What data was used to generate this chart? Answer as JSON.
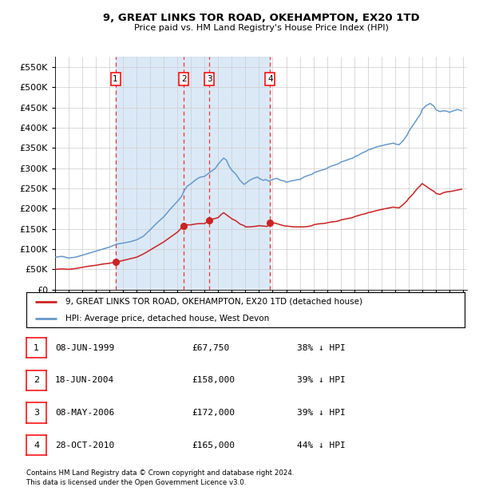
{
  "title": "9, GREAT LINKS TOR ROAD, OKEHAMPTON, EX20 1TD",
  "subtitle": "Price paid vs. HM Land Registry's House Price Index (HPI)",
  "bg_color": "#ddeeff",
  "plot_bg": "#ffffff",
  "legend1": "9, GREAT LINKS TOR ROAD, OKEHAMPTON, EX20 1TD (detached house)",
  "legend2": "HPI: Average price, detached house, West Devon",
  "footer1": "Contains HM Land Registry data © Crown copyright and database right 2024.",
  "footer2": "This data is licensed under the Open Government Licence v3.0.",
  "transactions": [
    {
      "num": 1,
      "date": "08-JUN-1999",
      "price": 67750,
      "pct": "38%",
      "x_year": 1999.44
    },
    {
      "num": 2,
      "date": "18-JUN-2004",
      "price": 158000,
      "pct": "39%",
      "x_year": 2004.46
    },
    {
      "num": 3,
      "date": "08-MAY-2006",
      "price": 172000,
      "pct": "39%",
      "x_year": 2006.35
    },
    {
      "num": 4,
      "date": "28-OCT-2010",
      "price": 165000,
      "pct": "44%",
      "x_year": 2010.82
    }
  ],
  "hpi_line_color": "#6699cc",
  "price_line_color": "#cc2222",
  "dot_color": "#cc2222",
  "vline_color": "#ee3333",
  "ylim": [
    0,
    575000
  ],
  "yticks": [
    0,
    50000,
    100000,
    150000,
    200000,
    250000,
    300000,
    350000,
    400000,
    450000,
    500000,
    550000
  ],
  "xlim": [
    1995.0,
    2025.3
  ],
  "hpi_data": [
    [
      1995.0,
      80000
    ],
    [
      1995.5,
      82000
    ],
    [
      1996.0,
      78000
    ],
    [
      1996.5,
      80000
    ],
    [
      1997.0,
      85000
    ],
    [
      1997.5,
      90000
    ],
    [
      1998.0,
      95000
    ],
    [
      1998.5,
      100000
    ],
    [
      1999.0,
      105000
    ],
    [
      1999.5,
      112000
    ],
    [
      2000.0,
      115000
    ],
    [
      2000.5,
      118000
    ],
    [
      2001.0,
      123000
    ],
    [
      2001.5,
      132000
    ],
    [
      2002.0,
      148000
    ],
    [
      2002.5,
      165000
    ],
    [
      2003.0,
      180000
    ],
    [
      2003.5,
      200000
    ],
    [
      2004.0,
      218000
    ],
    [
      2004.3,
      230000
    ],
    [
      2004.5,
      245000
    ],
    [
      2004.7,
      255000
    ],
    [
      2005.0,
      262000
    ],
    [
      2005.3,
      270000
    ],
    [
      2005.5,
      275000
    ],
    [
      2005.7,
      278000
    ],
    [
      2006.0,
      280000
    ],
    [
      2006.2,
      285000
    ],
    [
      2006.4,
      290000
    ],
    [
      2006.6,
      295000
    ],
    [
      2006.8,
      300000
    ],
    [
      2007.0,
      310000
    ],
    [
      2007.2,
      318000
    ],
    [
      2007.4,
      325000
    ],
    [
      2007.6,
      320000
    ],
    [
      2007.8,
      305000
    ],
    [
      2008.0,
      295000
    ],
    [
      2008.3,
      285000
    ],
    [
      2008.6,
      270000
    ],
    [
      2008.9,
      260000
    ],
    [
      2009.0,
      262000
    ],
    [
      2009.3,
      270000
    ],
    [
      2009.6,
      275000
    ],
    [
      2009.9,
      278000
    ],
    [
      2010.0,
      275000
    ],
    [
      2010.3,
      270000
    ],
    [
      2010.5,
      272000
    ],
    [
      2010.7,
      268000
    ],
    [
      2011.0,
      272000
    ],
    [
      2011.3,
      275000
    ],
    [
      2011.6,
      270000
    ],
    [
      2011.9,
      268000
    ],
    [
      2012.0,
      265000
    ],
    [
      2012.3,
      268000
    ],
    [
      2012.6,
      270000
    ],
    [
      2012.9,
      272000
    ],
    [
      2013.0,
      272000
    ],
    [
      2013.3,
      278000
    ],
    [
      2013.6,
      282000
    ],
    [
      2013.9,
      285000
    ],
    [
      2014.0,
      288000
    ],
    [
      2014.3,
      292000
    ],
    [
      2014.6,
      295000
    ],
    [
      2014.9,
      298000
    ],
    [
      2015.0,
      300000
    ],
    [
      2015.3,
      305000
    ],
    [
      2015.6,
      308000
    ],
    [
      2015.9,
      312000
    ],
    [
      2016.0,
      315000
    ],
    [
      2016.3,
      318000
    ],
    [
      2016.6,
      322000
    ],
    [
      2016.9,
      325000
    ],
    [
      2017.0,
      328000
    ],
    [
      2017.3,
      332000
    ],
    [
      2017.6,
      338000
    ],
    [
      2017.9,
      342000
    ],
    [
      2018.0,
      345000
    ],
    [
      2018.3,
      348000
    ],
    [
      2018.6,
      352000
    ],
    [
      2018.9,
      355000
    ],
    [
      2019.0,
      355000
    ],
    [
      2019.3,
      358000
    ],
    [
      2019.6,
      360000
    ],
    [
      2019.9,
      362000
    ],
    [
      2020.0,
      360000
    ],
    [
      2020.3,
      358000
    ],
    [
      2020.6,
      368000
    ],
    [
      2020.9,
      382000
    ],
    [
      2021.0,
      390000
    ],
    [
      2021.3,
      405000
    ],
    [
      2021.6,
      420000
    ],
    [
      2021.9,
      435000
    ],
    [
      2022.0,
      445000
    ],
    [
      2022.3,
      455000
    ],
    [
      2022.6,
      460000
    ],
    [
      2022.9,
      452000
    ],
    [
      2023.0,
      445000
    ],
    [
      2023.3,
      440000
    ],
    [
      2023.6,
      442000
    ],
    [
      2023.9,
      440000
    ],
    [
      2024.0,
      438000
    ],
    [
      2024.3,
      442000
    ],
    [
      2024.6,
      445000
    ],
    [
      2024.9,
      442000
    ]
  ],
  "price_data": [
    [
      1995.0,
      50000
    ],
    [
      1995.5,
      51000
    ],
    [
      1996.0,
      50000
    ],
    [
      1996.5,
      52000
    ],
    [
      1997.0,
      55000
    ],
    [
      1997.5,
      58000
    ],
    [
      1998.0,
      60000
    ],
    [
      1998.5,
      63000
    ],
    [
      1999.0,
      65000
    ],
    [
      1999.44,
      67750
    ],
    [
      1999.5,
      68000
    ],
    [
      2000.0,
      72000
    ],
    [
      2000.5,
      76000
    ],
    [
      2001.0,
      80000
    ],
    [
      2001.5,
      88000
    ],
    [
      2002.0,
      98000
    ],
    [
      2002.5,
      108000
    ],
    [
      2003.0,
      118000
    ],
    [
      2003.5,
      130000
    ],
    [
      2004.0,
      142000
    ],
    [
      2004.46,
      158000
    ],
    [
      2004.5,
      158000
    ],
    [
      2004.7,
      160000
    ],
    [
      2005.0,
      160000
    ],
    [
      2005.3,
      162000
    ],
    [
      2005.6,
      163000
    ],
    [
      2005.9,
      163000
    ],
    [
      2006.0,
      163000
    ],
    [
      2006.35,
      172000
    ],
    [
      2006.5,
      173000
    ],
    [
      2006.7,
      175000
    ],
    [
      2007.0,
      178000
    ],
    [
      2007.2,
      185000
    ],
    [
      2007.4,
      190000
    ],
    [
      2007.6,
      185000
    ],
    [
      2007.8,
      180000
    ],
    [
      2008.0,
      175000
    ],
    [
      2008.3,
      170000
    ],
    [
      2008.6,
      162000
    ],
    [
      2008.9,
      158000
    ],
    [
      2009.0,
      155000
    ],
    [
      2009.3,
      155000
    ],
    [
      2009.6,
      156000
    ],
    [
      2009.9,
      157000
    ],
    [
      2010.0,
      158000
    ],
    [
      2010.3,
      157000
    ],
    [
      2010.6,
      156000
    ],
    [
      2010.82,
      165000
    ],
    [
      2011.0,
      165000
    ],
    [
      2011.2,
      164000
    ],
    [
      2011.4,
      162000
    ],
    [
      2011.6,
      160000
    ],
    [
      2011.8,
      158000
    ],
    [
      2012.0,
      157000
    ],
    [
      2012.3,
      156000
    ],
    [
      2012.6,
      155000
    ],
    [
      2012.9,
      155000
    ],
    [
      2013.0,
      155000
    ],
    [
      2013.3,
      155000
    ],
    [
      2013.6,
      156000
    ],
    [
      2013.9,
      158000
    ],
    [
      2014.0,
      160000
    ],
    [
      2014.3,
      162000
    ],
    [
      2014.6,
      163000
    ],
    [
      2014.9,
      164000
    ],
    [
      2015.0,
      165000
    ],
    [
      2015.3,
      167000
    ],
    [
      2015.6,
      168000
    ],
    [
      2015.9,
      170000
    ],
    [
      2016.0,
      172000
    ],
    [
      2016.3,
      174000
    ],
    [
      2016.6,
      176000
    ],
    [
      2016.9,
      178000
    ],
    [
      2017.0,
      180000
    ],
    [
      2017.3,
      183000
    ],
    [
      2017.6,
      186000
    ],
    [
      2017.9,
      188000
    ],
    [
      2018.0,
      190000
    ],
    [
      2018.3,
      192000
    ],
    [
      2018.6,
      195000
    ],
    [
      2018.9,
      197000
    ],
    [
      2019.0,
      198000
    ],
    [
      2019.3,
      200000
    ],
    [
      2019.6,
      202000
    ],
    [
      2019.9,
      204000
    ],
    [
      2020.0,
      203000
    ],
    [
      2020.3,
      202000
    ],
    [
      2020.6,
      210000
    ],
    [
      2020.9,
      220000
    ],
    [
      2021.0,
      225000
    ],
    [
      2021.3,
      235000
    ],
    [
      2021.6,
      248000
    ],
    [
      2021.9,
      258000
    ],
    [
      2022.0,
      262000
    ],
    [
      2022.3,
      255000
    ],
    [
      2022.6,
      248000
    ],
    [
      2022.9,
      242000
    ],
    [
      2023.0,
      238000
    ],
    [
      2023.3,
      235000
    ],
    [
      2023.6,
      240000
    ],
    [
      2023.9,
      242000
    ],
    [
      2024.0,
      242000
    ],
    [
      2024.3,
      244000
    ],
    [
      2024.6,
      246000
    ],
    [
      2024.9,
      248000
    ]
  ]
}
